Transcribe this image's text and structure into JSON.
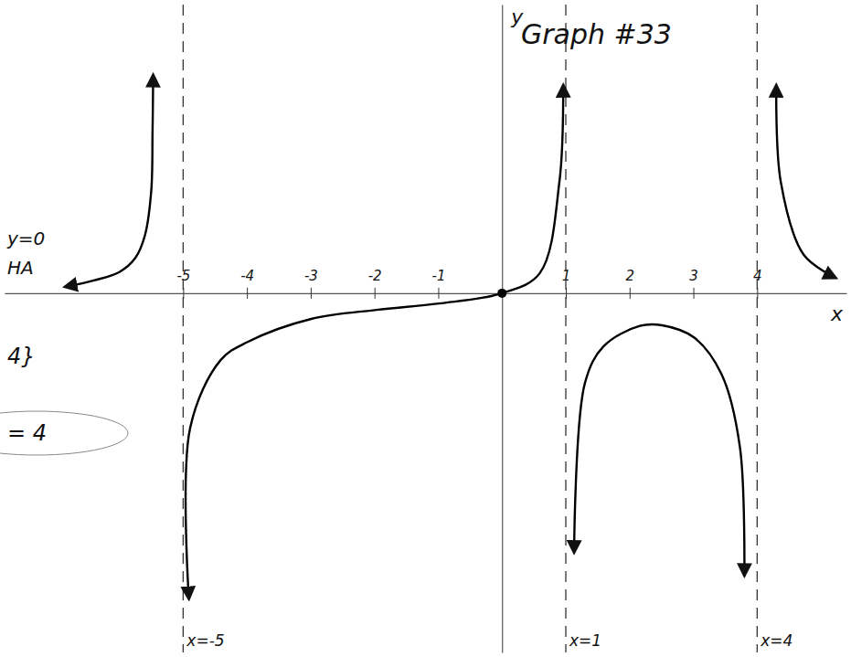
{
  "chart_data": {
    "type": "line",
    "title": "Graph #33",
    "x_label": "x",
    "y_label": "y",
    "x": [
      -6.85,
      -6.4,
      -6.0,
      -5.75,
      -5.6,
      -5.5,
      -5.48,
      -5.47,
      -5,
      -4.91,
      -4.89,
      -4.41,
      -3.99,
      -2.99,
      -1.97,
      -0.99,
      0,
      0.59,
      0.9,
      0.96,
      1,
      1.13,
      1.3,
      1.59,
      2.16,
      2.51,
      3.01,
      3.44,
      3.73,
      3.8,
      4,
      4.3,
      4.37,
      4.73,
      5.23
    ],
    "series": [
      {
        "color": "#000000",
        "values": [
          0.1,
          0.2,
          0.33,
          0.55,
          0.9,
          1.6,
          2.5,
          3.4,
          null,
          -4.76,
          -2.1,
          -1.04,
          -0.76,
          -0.4,
          -0.26,
          -0.16,
          0,
          0.31,
          1.74,
          3.24,
          null,
          -4.04,
          -1.4,
          -0.83,
          -0.51,
          -0.5,
          -0.69,
          -1.26,
          -2.4,
          -4.4,
          null,
          3.24,
          1.74,
          0.6,
          0.24
        ]
      }
    ],
    "xlim": [
      -7.8,
      5.4
    ],
    "ylim": [
      -5.6,
      4.5
    ],
    "xticks": [
      -5,
      -4,
      -3,
      -2,
      -1,
      1,
      2,
      3,
      4
    ],
    "yticks": [],
    "tick_labels": "x",
    "asymptotes": {
      "x": [
        -5,
        1,
        4
      ],
      "labels": [
        "x=-5",
        "x=1",
        "x=4"
      ]
    },
    "annotations": [
      "y=0",
      "HA",
      "4}",
      "= 4"
    ]
  }
}
